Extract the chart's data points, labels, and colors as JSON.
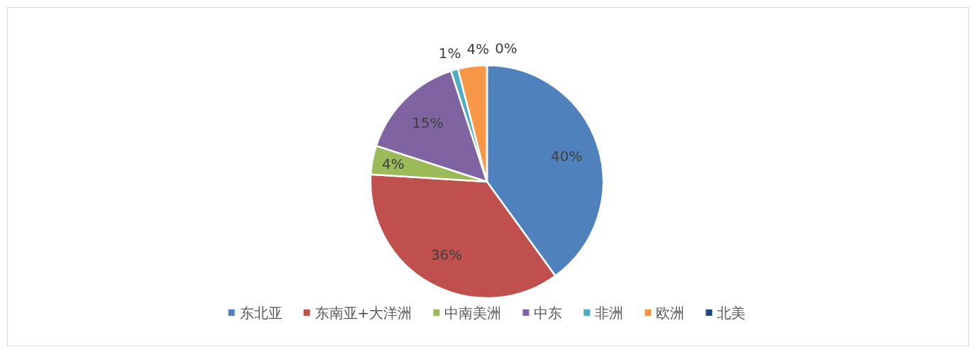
{
  "chart_data": {
    "type": "pie",
    "categories": [
      "东北亚",
      "东南亚+大洋洲",
      "中南美洲",
      "中东",
      "非洲",
      "欧洲",
      "北美"
    ],
    "values": [
      40,
      36,
      4,
      15,
      1,
      4,
      0
    ],
    "value_labels": [
      "40%",
      "36%",
      "4%",
      "15%",
      "1%",
      "4%",
      "0%"
    ],
    "colors": [
      "#4f81bd",
      "#c0504d",
      "#9bbb59",
      "#8064a2",
      "#4bacc6",
      "#f79646",
      "#1f497d"
    ],
    "legend": "bottom"
  }
}
